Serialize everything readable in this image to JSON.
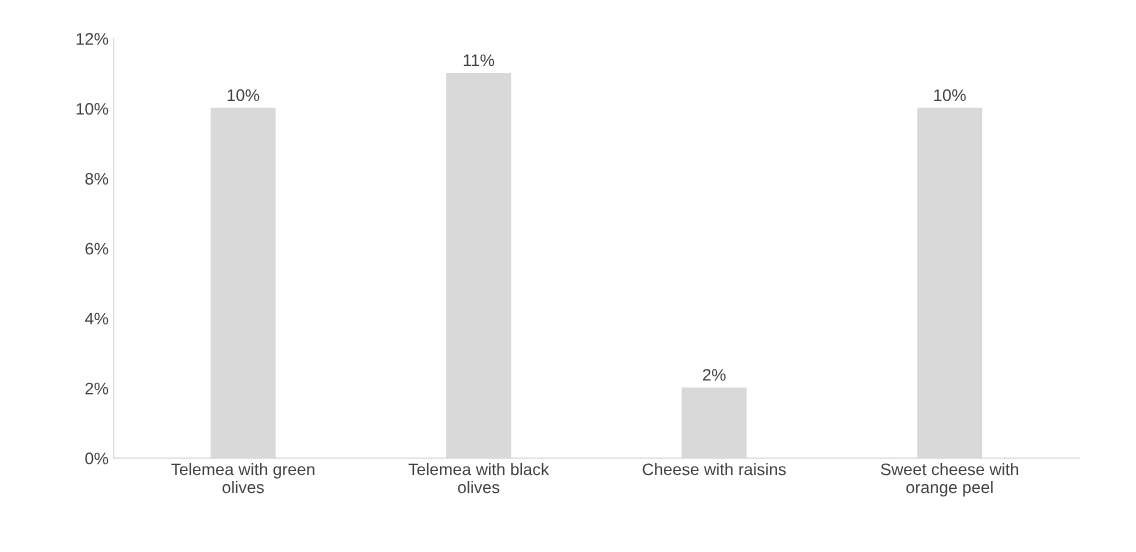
{
  "chart_data": {
    "type": "bar",
    "categories": [
      "Telemea with green olives",
      "Telemea with black olives",
      "Cheese with raisins",
      "Sweet cheese with orange peel"
    ],
    "values": [
      10,
      11,
      2,
      10
    ],
    "value_labels": [
      "10%",
      "11%",
      "2%",
      "10%"
    ],
    "color": "#d9d9d9",
    "ylim": [
      0,
      12
    ],
    "yticks": [
      {
        "value": 0,
        "label": "0%"
      },
      {
        "value": 2,
        "label": "2%"
      },
      {
        "value": 4,
        "label": "4%"
      },
      {
        "value": 6,
        "label": "6%"
      },
      {
        "value": 8,
        "label": "8%"
      },
      {
        "value": 10,
        "label": "10%"
      },
      {
        "value": 12,
        "label": "12%"
      }
    ],
    "grid": false,
    "legend": false
  }
}
